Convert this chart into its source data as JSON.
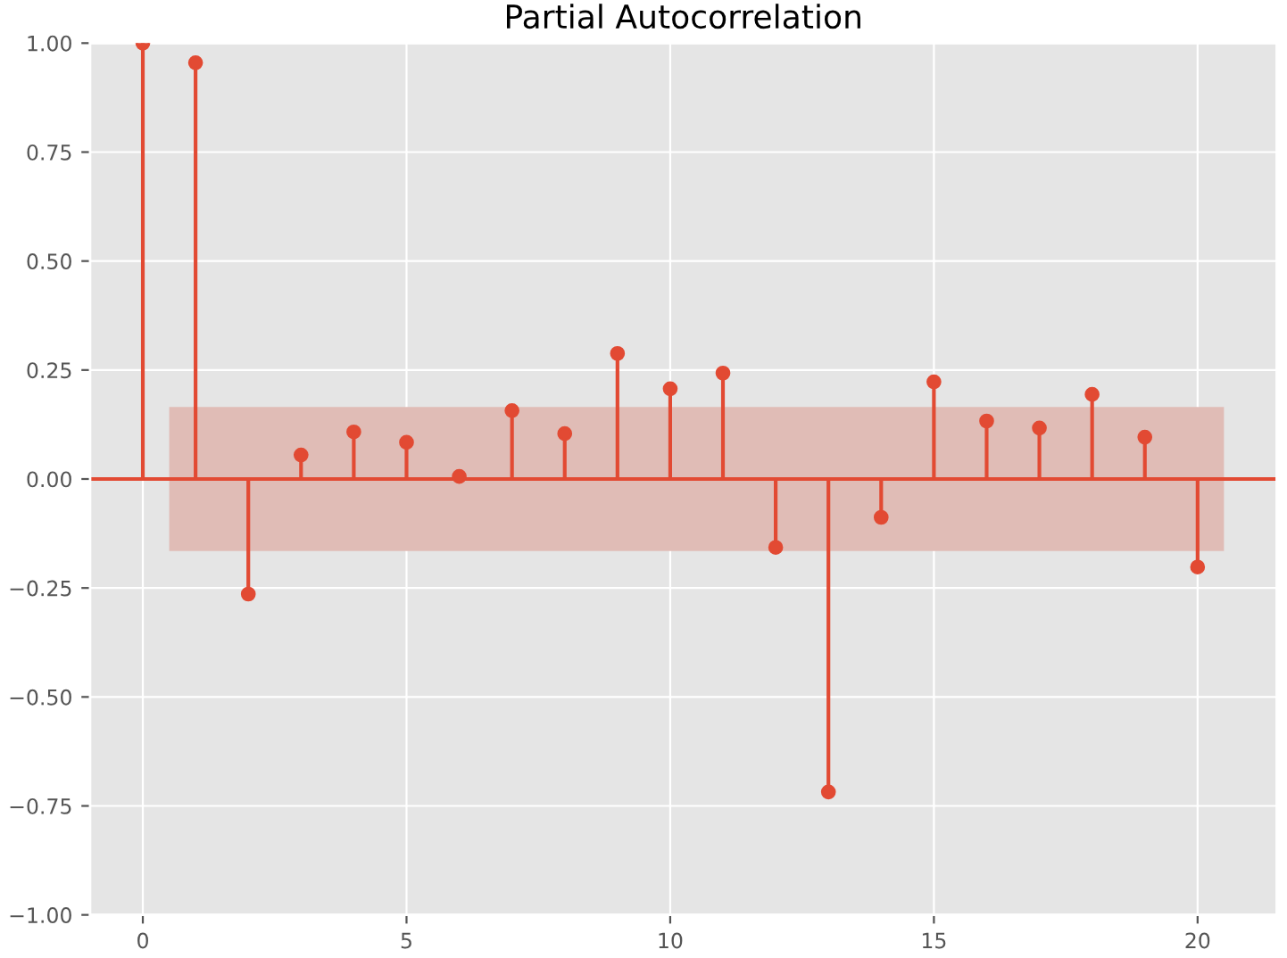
{
  "chart_data": {
    "type": "lollipop",
    "title": "Partial Autocorrelation",
    "x": [
      0,
      1,
      2,
      3,
      4,
      5,
      6,
      7,
      8,
      9,
      10,
      11,
      12,
      13,
      14,
      15,
      16,
      17,
      18,
      19,
      20
    ],
    "values": [
      1.0,
      0.955,
      -0.264,
      0.055,
      0.108,
      0.084,
      0.006,
      0.157,
      0.104,
      0.288,
      0.207,
      0.243,
      -0.157,
      -0.718,
      -0.088,
      0.223,
      0.133,
      0.117,
      0.194,
      0.096,
      -0.202
    ],
    "color": "#e24a33",
    "marker": "circle",
    "xlim": [
      -1,
      21.5
    ],
    "xticks": [
      0,
      5,
      10,
      15,
      20
    ],
    "ylim": [
      -1,
      1
    ],
    "yticks": [
      {
        "value": -1,
        "label": "−1.00"
      },
      {
        "value": -0.75,
        "label": "−0.75"
      },
      {
        "value": -0.5,
        "label": "−0.50"
      },
      {
        "value": -0.25,
        "label": "−0.25"
      },
      {
        "value": 0,
        "label": "0.00"
      },
      {
        "value": 0.25,
        "label": "0.25"
      },
      {
        "value": 0.5,
        "label": "0.50"
      },
      {
        "value": 0.75,
        "label": "0.75"
      },
      {
        "value": 1,
        "label": "1.00"
      }
    ],
    "ref_lines": [
      {
        "axis": "y",
        "value": 0,
        "color": "#e24a33"
      }
    ],
    "bands": [
      {
        "axis": "y",
        "from": -0.165,
        "to": 0.165,
        "color": "#e0bcb6"
      }
    ],
    "grid": true
  }
}
